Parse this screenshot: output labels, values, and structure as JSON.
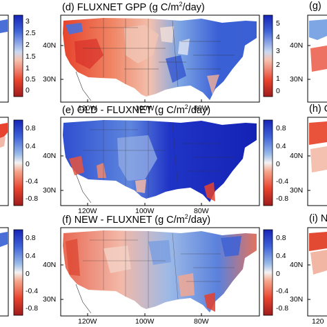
{
  "panels": {
    "d": {
      "title_pre": "(d) FLUXNET GPP (g C/m",
      "title_post": "/day)"
    },
    "e": {
      "title_pre": "(e) OLD - FLUXNET (g C/m",
      "title_post": "/day)"
    },
    "f": {
      "title_pre": "(f) NEW - FLUXNET (g C/m",
      "title_post": "/day)"
    },
    "g": {
      "title": "(g)"
    },
    "h": {
      "title": "(h) O"
    },
    "i": {
      "title": "(i) N"
    },
    "sup": "2"
  },
  "colorbars": {
    "left_top": [
      "3",
      "2.5",
      "2",
      "1.5",
      "1",
      "0.5",
      "0"
    ],
    "right_top": [
      "5",
      "4",
      "3",
      "2",
      "1",
      "0"
    ],
    "left_mid": [
      "0.8",
      "0.4",
      "0",
      "-0.4",
      "-0.8"
    ],
    "right_mid": [
      "0.8",
      "0.4",
      "0",
      "-0.4",
      "-0.8"
    ],
    "left_bot": [
      "0.8",
      "0.4",
      "0",
      "-0.4",
      "-0.8"
    ],
    "right_bot": [
      "0.8",
      "0.4",
      "0",
      "-0.4",
      "-0.8"
    ]
  },
  "axes": {
    "lat_40": "40N",
    "lat_30": "30N",
    "lon": [
      "120W",
      "100W",
      "80W"
    ],
    "lon_partial": "120"
  },
  "colors": {
    "dark_red": "#9e1b1b",
    "red": "#e8432e",
    "light_red": "#f6a58c",
    "white": "#f4f2f2",
    "light_blue": "#9bbbe8",
    "blue": "#3f64d8",
    "dark_blue": "#1624b8"
  }
}
